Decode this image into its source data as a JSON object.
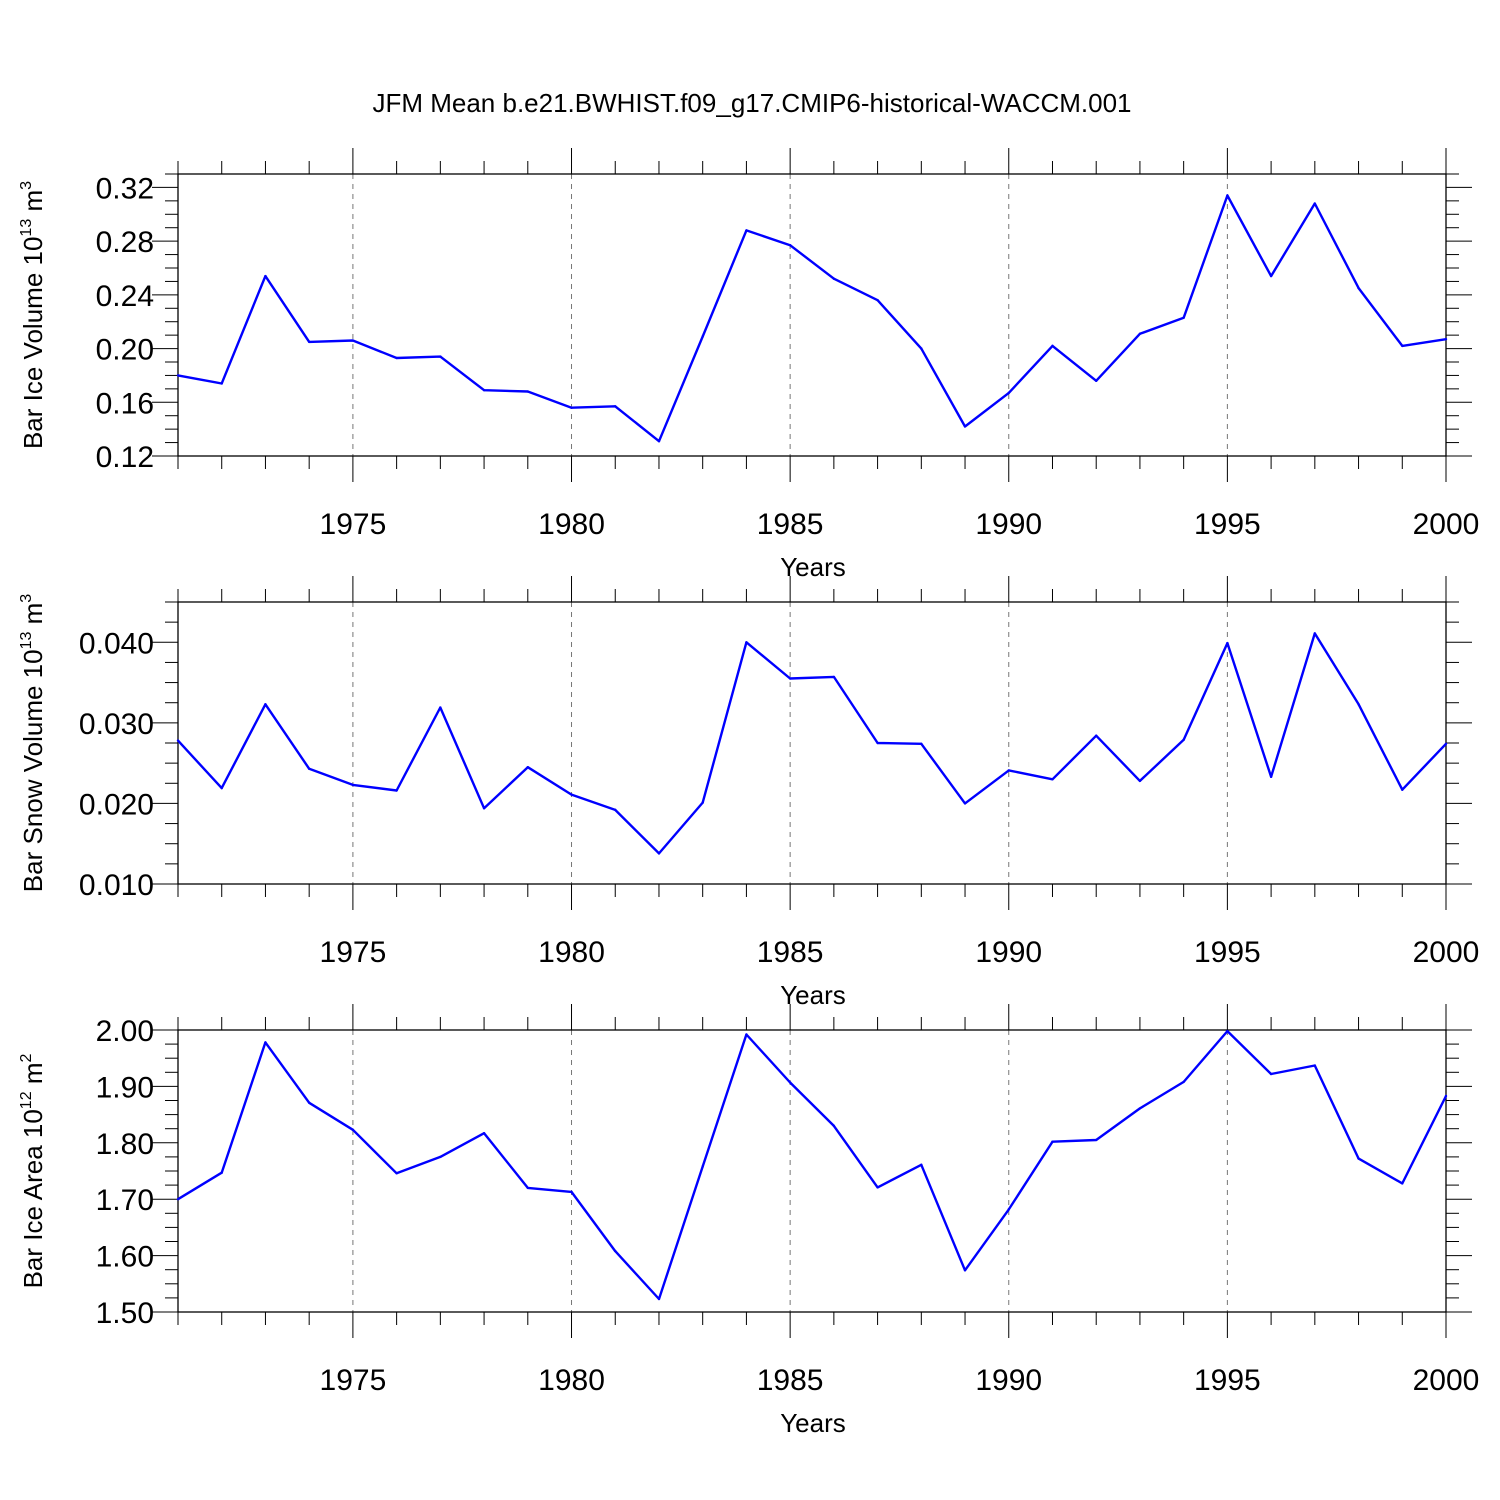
{
  "title": "JFM Mean b.e21.BWHIST.f09_g17.CMIP6-historical-WACCM.001",
  "colors": {
    "line": "#0000ff",
    "axis": "#000000",
    "grid": "#777777"
  },
  "chart_data": [
    {
      "type": "line",
      "xlabel": "Years",
      "ylabel": "Bar Ice Volume 10",
      "ylabel_sup1": "13",
      "ylabel_mid": " m",
      "ylabel_sup2": "3",
      "xlim": [
        1971,
        2000
      ],
      "ylim": [
        0.12,
        0.33
      ],
      "yticks": [
        0.12,
        0.16,
        0.2,
        0.24,
        0.28,
        0.32
      ],
      "ytick_labels": [
        "0.12",
        "0.16",
        "0.20",
        "0.24",
        "0.28",
        "0.32"
      ],
      "xticks": [
        1975,
        1980,
        1985,
        1990,
        1995,
        2000
      ],
      "xtick_labels": [
        "1975",
        "1980",
        "1985",
        "1990",
        "1995",
        "2000"
      ],
      "grid": "vertical-dashed",
      "x": [
        1971,
        1972,
        1973,
        1974,
        1975,
        1976,
        1977,
        1978,
        1979,
        1980,
        1981,
        1982,
        1983,
        1984,
        1985,
        1986,
        1987,
        1988,
        1989,
        1990,
        1991,
        1992,
        1993,
        1994,
        1995,
        1996,
        1997,
        1998,
        1999,
        2000
      ],
      "values": [
        0.18,
        0.174,
        0.254,
        0.205,
        0.206,
        0.193,
        0.194,
        0.169,
        0.168,
        0.156,
        0.157,
        0.131,
        0.209,
        0.288,
        0.277,
        0.252,
        0.236,
        0.2,
        0.142,
        0.167,
        0.202,
        0.176,
        0.211,
        0.223,
        0.314,
        0.254,
        0.308,
        0.245,
        0.202,
        0.207
      ]
    },
    {
      "type": "line",
      "xlabel": "Years",
      "ylabel": "Bar Snow Volume 10",
      "ylabel_sup1": "13",
      "ylabel_mid": " m",
      "ylabel_sup2": "3",
      "xlim": [
        1971,
        2000
      ],
      "ylim": [
        0.01,
        0.045
      ],
      "yticks": [
        0.01,
        0.02,
        0.03,
        0.04
      ],
      "ytick_labels": [
        "0.010",
        "0.020",
        "0.030",
        "0.040"
      ],
      "xticks": [
        1975,
        1980,
        1985,
        1990,
        1995,
        2000
      ],
      "xtick_labels": [
        "1975",
        "1980",
        "1985",
        "1990",
        "1995",
        "2000"
      ],
      "grid": "vertical-dashed",
      "x": [
        1971,
        1972,
        1973,
        1974,
        1975,
        1976,
        1977,
        1978,
        1979,
        1980,
        1981,
        1982,
        1983,
        1984,
        1985,
        1986,
        1987,
        1988,
        1989,
        1990,
        1991,
        1992,
        1993,
        1994,
        1995,
        1996,
        1997,
        1998,
        1999,
        2000
      ],
      "values": [
        0.0278,
        0.0219,
        0.0323,
        0.0243,
        0.0223,
        0.0216,
        0.0319,
        0.0194,
        0.0245,
        0.0211,
        0.0192,
        0.0138,
        0.0201,
        0.04,
        0.0355,
        0.0357,
        0.0275,
        0.0274,
        0.02,
        0.0241,
        0.023,
        0.0284,
        0.0228,
        0.0279,
        0.0399,
        0.0233,
        0.0411,
        0.0323,
        0.0217,
        0.0274
      ]
    },
    {
      "type": "line",
      "xlabel": "Years",
      "ylabel": "Bar Ice Area 10",
      "ylabel_sup1": "12",
      "ylabel_mid": " m",
      "ylabel_sup2": "2",
      "xlim": [
        1971,
        2000
      ],
      "ylim": [
        1.5,
        2.0
      ],
      "yticks": [
        1.5,
        1.6,
        1.7,
        1.8,
        1.9,
        2.0
      ],
      "ytick_labels": [
        "1.50",
        "1.60",
        "1.70",
        "1.80",
        "1.90",
        "2.00"
      ],
      "xticks": [
        1975,
        1980,
        1985,
        1990,
        1995,
        2000
      ],
      "xtick_labels": [
        "1975",
        "1980",
        "1985",
        "1990",
        "1995",
        "2000"
      ],
      "grid": "vertical-dashed",
      "x": [
        1971,
        1972,
        1973,
        1974,
        1975,
        1976,
        1977,
        1978,
        1979,
        1980,
        1981,
        1982,
        1983,
        1984,
        1985,
        1986,
        1987,
        1988,
        1989,
        1990,
        1991,
        1992,
        1993,
        1994,
        1995,
        1996,
        1997,
        1998,
        1999,
        2000
      ],
      "values": [
        1.7,
        1.747,
        1.978,
        1.871,
        1.823,
        1.746,
        1.775,
        1.817,
        1.72,
        1.713,
        1.608,
        1.523,
        1.758,
        1.992,
        1.907,
        1.83,
        1.721,
        1.761,
        1.574,
        1.682,
        1.802,
        1.805,
        1.861,
        1.908,
        1.998,
        1.922,
        1.937,
        1.772,
        1.728,
        1.883
      ]
    }
  ]
}
